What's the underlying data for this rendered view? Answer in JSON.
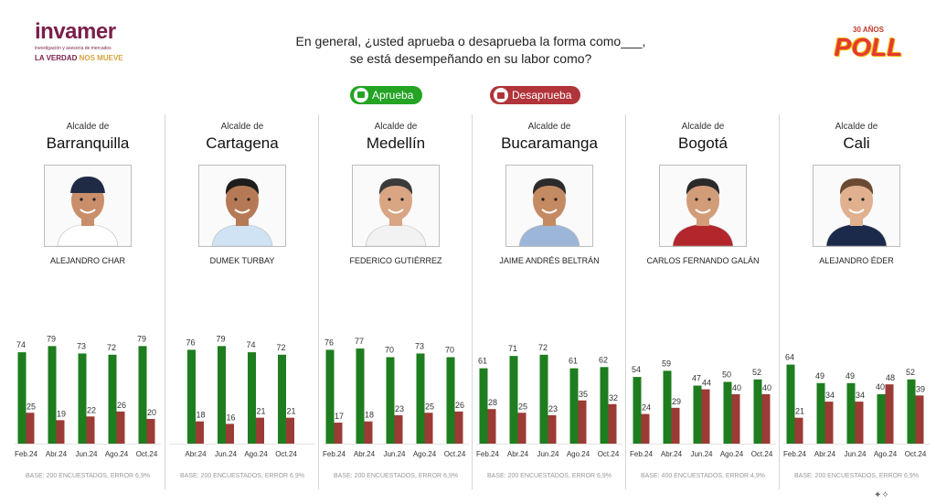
{
  "brand": {
    "name": "invamer",
    "subtitle": "investigación y asesoría de mercados",
    "tagline_a": "LA VERDAD",
    "tagline_b": "NOS MUEVE"
  },
  "poll_brand": {
    "top": "30 AÑOS",
    "main": "POLL"
  },
  "question": {
    "line1": "En general, ¿usted aprueba o desaprueba la forma como___,",
    "line2": "se está desempeñando en su labor como?"
  },
  "legend": {
    "approve": "Aprueba",
    "disapprove": "Desaprueba"
  },
  "colors": {
    "approve": "#1e7d1e",
    "disapprove": "#9c3b35",
    "approve_pill": "#23a423",
    "disapprove_pill": "#b0343a"
  },
  "chart_data": [
    {
      "type": "bar",
      "role": "Alcalde de",
      "city": "Barranquilla",
      "mayor": "ALEJANDRO CHAR",
      "categories": [
        "Feb.24",
        "Abr.24",
        "Jun.24",
        "Ago.24",
        "Oct.24"
      ],
      "series": [
        {
          "name": "Aprueba",
          "values": [
            74,
            79,
            73,
            72,
            79
          ]
        },
        {
          "name": "Desaprueba",
          "values": [
            25,
            19,
            22,
            26,
            20
          ]
        }
      ],
      "base": "BASE: 200 ENCUESTADOS, ERROR 6,9%",
      "ylim": [
        0,
        100
      ]
    },
    {
      "type": "bar",
      "role": "Alcalde de",
      "city": "Cartagena",
      "mayor": "DUMEK TURBAY",
      "categories": [
        "Abr.24",
        "Jun.24",
        "Ago.24",
        "Oct.24"
      ],
      "series": [
        {
          "name": "Aprueba",
          "values": [
            76,
            79,
            74,
            72
          ]
        },
        {
          "name": "Desaprueba",
          "values": [
            18,
            16,
            21,
            21
          ]
        }
      ],
      "base": "BASE: 200 ENCUESTADOS, ERROR 6,9%",
      "ylim": [
        0,
        100
      ]
    },
    {
      "type": "bar",
      "role": "Alcalde de",
      "city": "Medellín",
      "mayor": "FEDERICO GUTIÉRREZ",
      "categories": [
        "Feb.24",
        "Abr.24",
        "Jun.24",
        "Ago.24",
        "Oct.24"
      ],
      "series": [
        {
          "name": "Aprueba",
          "values": [
            76,
            77,
            70,
            73,
            70
          ]
        },
        {
          "name": "Desaprueba",
          "values": [
            17,
            18,
            23,
            25,
            26
          ]
        }
      ],
      "base": "BASE: 200 ENCUESTADOS, ERROR 6,9%",
      "ylim": [
        0,
        100
      ]
    },
    {
      "type": "bar",
      "role": "Alcalde de",
      "city": "Bucaramanga",
      "mayor": "JAIME ANDRÉS BELTRÁN",
      "categories": [
        "Feb.24",
        "Abr.24",
        "Jun.24",
        "Ago.24",
        "Oct.24"
      ],
      "series": [
        {
          "name": "Aprueba",
          "values": [
            61,
            71,
            72,
            61,
            62
          ]
        },
        {
          "name": "Desaprueba",
          "values": [
            28,
            25,
            23,
            35,
            32
          ]
        }
      ],
      "base": "BASE: 200 ENCUESTADOS, ERROR 6,9%",
      "ylim": [
        0,
        100
      ]
    },
    {
      "type": "bar",
      "role": "Alcalde de",
      "city": "Bogotá",
      "mayor": "CARLOS FERNANDO GALÁN",
      "categories": [
        "Feb.24",
        "Abr.24",
        "Jun.24",
        "Ago.24",
        "Oct.24"
      ],
      "series": [
        {
          "name": "Aprueba",
          "values": [
            54,
            59,
            47,
            50,
            52
          ]
        },
        {
          "name": "Desaprueba",
          "values": [
            24,
            29,
            44,
            40,
            40
          ]
        }
      ],
      "base": "BASE: 400 ENCUESTADOS, ERROR 4,9%",
      "ylim": [
        0,
        100
      ]
    },
    {
      "type": "bar",
      "role": "Alcalde de",
      "city": "Cali",
      "mayor": "ALEJANDRO ÉDER",
      "categories": [
        "Feb.24",
        "Abr.24",
        "Jun.24",
        "Ago.24",
        "Oct.24"
      ],
      "series": [
        {
          "name": "Aprueba",
          "values": [
            64,
            49,
            49,
            40,
            52
          ]
        },
        {
          "name": "Desaprueba",
          "values": [
            21,
            34,
            34,
            48,
            39
          ]
        }
      ],
      "base": "BASE: 200 ENCUESTADOS, ERROR 6,9%",
      "ylim": [
        0,
        100
      ]
    }
  ],
  "portraits": [
    {
      "skin": "#c98f6a",
      "hair": "#2a2a2a",
      "shirt": "#ffffff",
      "cap": "#1f2a44"
    },
    {
      "skin": "#b57a55",
      "hair": "#1d1d1d",
      "shirt": "#cfe3f5",
      "cap": ""
    },
    {
      "skin": "#d9a583",
      "hair": "#3a3a3a",
      "shirt": "#f2f2f2",
      "cap": ""
    },
    {
      "skin": "#c48a62",
      "hair": "#2b2b2b",
      "shirt": "#9bb6d8",
      "cap": ""
    },
    {
      "skin": "#d29c78",
      "hair": "#2a2a2a",
      "shirt": "#b3262c",
      "cap": ""
    },
    {
      "skin": "#e0b08f",
      "hair": "#6b4a32",
      "shirt": "#1b2a4a",
      "cap": ""
    }
  ]
}
